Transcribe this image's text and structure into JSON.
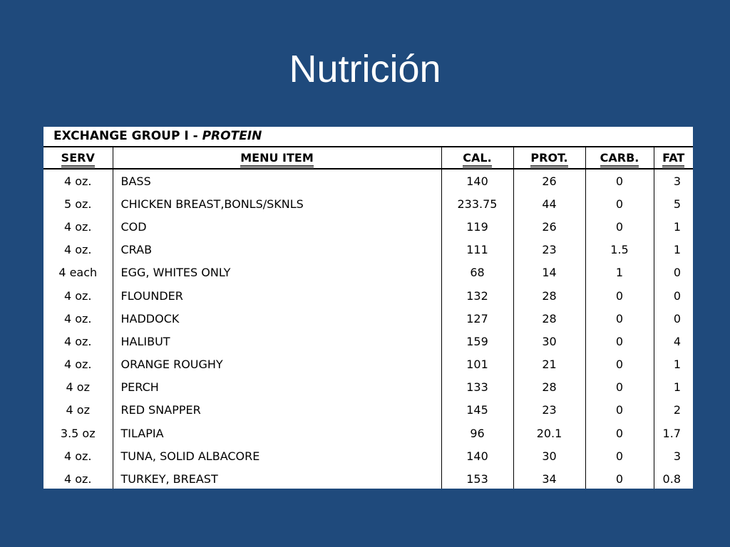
{
  "slide": {
    "title": "Nutrición"
  },
  "table": {
    "group_prefix": "EXCHANGE GROUP I - ",
    "group_name": "PROTEIN",
    "headers": {
      "serv": "SERV",
      "item": "MENU ITEM",
      "cal": "CAL.",
      "prot": "PROT.",
      "carb": "CARB.",
      "fat": "FAT"
    },
    "rows": [
      {
        "serv": "4 oz.",
        "item": "BASS",
        "cal": "140",
        "prot": "26",
        "carb": "0",
        "fat": "3"
      },
      {
        "serv": "5 oz.",
        "item": "CHICKEN BREAST,BONLS/SKNLS",
        "cal": "233.75",
        "prot": "44",
        "carb": "0",
        "fat": "5"
      },
      {
        "serv": "4 oz.",
        "item": "COD",
        "cal": "119",
        "prot": "26",
        "carb": "0",
        "fat": "1"
      },
      {
        "serv": "4 oz.",
        "item": "CRAB",
        "cal": "111",
        "prot": "23",
        "carb": "1.5",
        "fat": "1"
      },
      {
        "serv": "4 each",
        "item": "EGG, WHITES ONLY",
        "cal": "68",
        "prot": "14",
        "carb": "1",
        "fat": "0"
      },
      {
        "serv": "4 oz.",
        "item": "FLOUNDER",
        "cal": "132",
        "prot": "28",
        "carb": "0",
        "fat": "0"
      },
      {
        "serv": "4 oz.",
        "item": "HADDOCK",
        "cal": "127",
        "prot": "28",
        "carb": "0",
        "fat": "0"
      },
      {
        "serv": "4 oz.",
        "item": "HALIBUT",
        "cal": "159",
        "prot": "30",
        "carb": "0",
        "fat": "4"
      },
      {
        "serv": "4 oz.",
        "item": "ORANGE ROUGHY",
        "cal": "101",
        "prot": "21",
        "carb": "0",
        "fat": "1"
      },
      {
        "serv": "4 oz",
        "item": "PERCH",
        "cal": "133",
        "prot": "28",
        "carb": "0",
        "fat": "1"
      },
      {
        "serv": "4 oz",
        "item": "RED SNAPPER",
        "cal": "145",
        "prot": "23",
        "carb": "0",
        "fat": "2"
      },
      {
        "serv": "3.5 oz",
        "item": "TILAPIA",
        "cal": "96",
        "prot": "20.1",
        "carb": "0",
        "fat": "1.7"
      },
      {
        "serv": "4 oz.",
        "item": "TUNA, SOLID ALBACORE",
        "cal": "140",
        "prot": "30",
        "carb": "0",
        "fat": "3"
      },
      {
        "serv": "4 oz.",
        "item": "TURKEY, BREAST",
        "cal": "153",
        "prot": "34",
        "carb": "0",
        "fat": "0.8"
      }
    ]
  }
}
